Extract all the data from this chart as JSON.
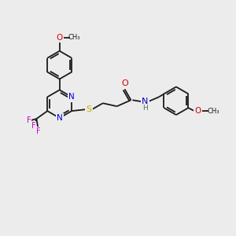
{
  "bg": "#ececec",
  "C": "#1a1a1a",
  "N": "#0000dd",
  "O": "#dd0000",
  "S": "#ccaa00",
  "F": "#cc00cc",
  "H": "#666666",
  "figsize": [
    3.0,
    3.0
  ],
  "dpi": 100,
  "lw": 1.3,
  "r": 18
}
